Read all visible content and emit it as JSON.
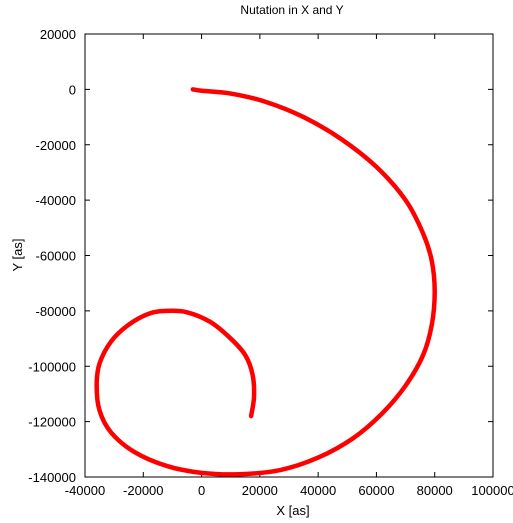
{
  "chart_data": {
    "type": "line",
    "title": "Nutation in X and Y",
    "xlabel": "X [as]",
    "ylabel": "Y [as]",
    "xlim": [
      -40000,
      100000
    ],
    "ylim": [
      -140000,
      20000
    ],
    "xticks": [
      -40000,
      -20000,
      0,
      20000,
      40000,
      60000,
      80000,
      100000
    ],
    "yticks": [
      20000,
      0,
      -20000,
      -40000,
      -60000,
      -80000,
      -100000,
      -120000,
      -140000
    ],
    "xtick_labels": [
      "-40000",
      "-20000",
      "0",
      "20000",
      "40000",
      "60000",
      "80000",
      "100000"
    ],
    "ytick_labels": [
      "20000",
      "0",
      "-20000",
      "-40000",
      "-60000",
      "-80000",
      "-100000",
      "-120000",
      "-140000"
    ],
    "grid": false,
    "line_color": "#ff0000",
    "series": [
      {
        "x": [
          -3000,
          0,
          10000,
          22000,
          35000,
          48000,
          60000,
          70000,
          76000,
          79000,
          80000,
          79000,
          76000,
          70000,
          62000,
          52000,
          40000,
          27000,
          13000,
          0,
          -12000,
          -23000,
          -31000,
          -35000,
          -36000,
          -35000,
          -31000,
          -25000,
          -18000,
          -12000,
          -5000,
          3000,
          10000,
          15000,
          17500,
          18000,
          17000
        ],
        "y": [
          0,
          -500,
          -1500,
          -4500,
          -10000,
          -18000,
          -28000,
          -40000,
          -52000,
          -62000,
          -73000,
          -85000,
          -96000,
          -107000,
          -117000,
          -126000,
          -133000,
          -137500,
          -139000,
          -138500,
          -136000,
          -131000,
          -124000,
          -116000,
          -107000,
          -99000,
          -91000,
          -85000,
          -81000,
          -80000,
          -80500,
          -84000,
          -90000,
          -96000,
          -103000,
          -111000,
          -118000
        ]
      }
    ]
  }
}
